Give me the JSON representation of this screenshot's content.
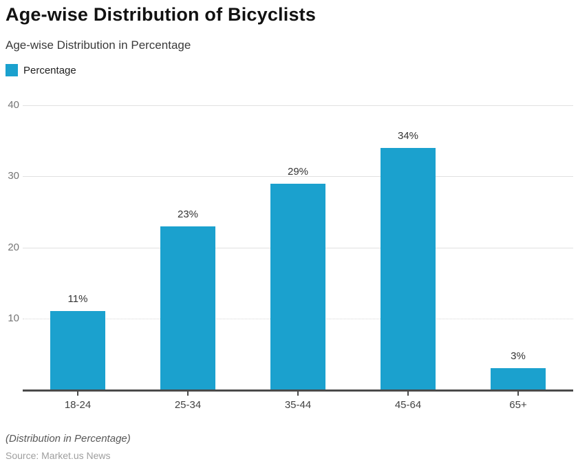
{
  "header": {
    "title": "Age-wise Distribution of Bicyclists",
    "subtitle": "Age-wise Distribution in Percentage"
  },
  "legend": {
    "label": "Percentage",
    "swatch_color": "#1BA1CE"
  },
  "chart_data": {
    "type": "bar",
    "title": "Age-wise Distribution of Bicyclists",
    "subtitle": "Age-wise Distribution in Percentage",
    "categories": [
      "18-24",
      "25-34",
      "35-44",
      "45-64",
      "65+"
    ],
    "series": [
      {
        "name": "Percentage",
        "values": [
          11,
          23,
          29,
          34,
          3
        ]
      }
    ],
    "value_labels": [
      "11%",
      "23%",
      "29%",
      "34%",
      "3%"
    ],
    "xlabel": "",
    "ylabel": "",
    "ylim": [
      0,
      40
    ],
    "yticks": [
      10,
      20,
      30,
      40
    ],
    "grid": true,
    "dotted_grid_ticks": [
      10
    ],
    "legend_position": "top-left",
    "bar_color": "#1BA1CE",
    "axis_color": "#4a4a4a",
    "grid_color": "#e0e0e0"
  },
  "footer": {
    "note": "(Distribution in Percentage)",
    "source": "Source: Market.us News"
  }
}
